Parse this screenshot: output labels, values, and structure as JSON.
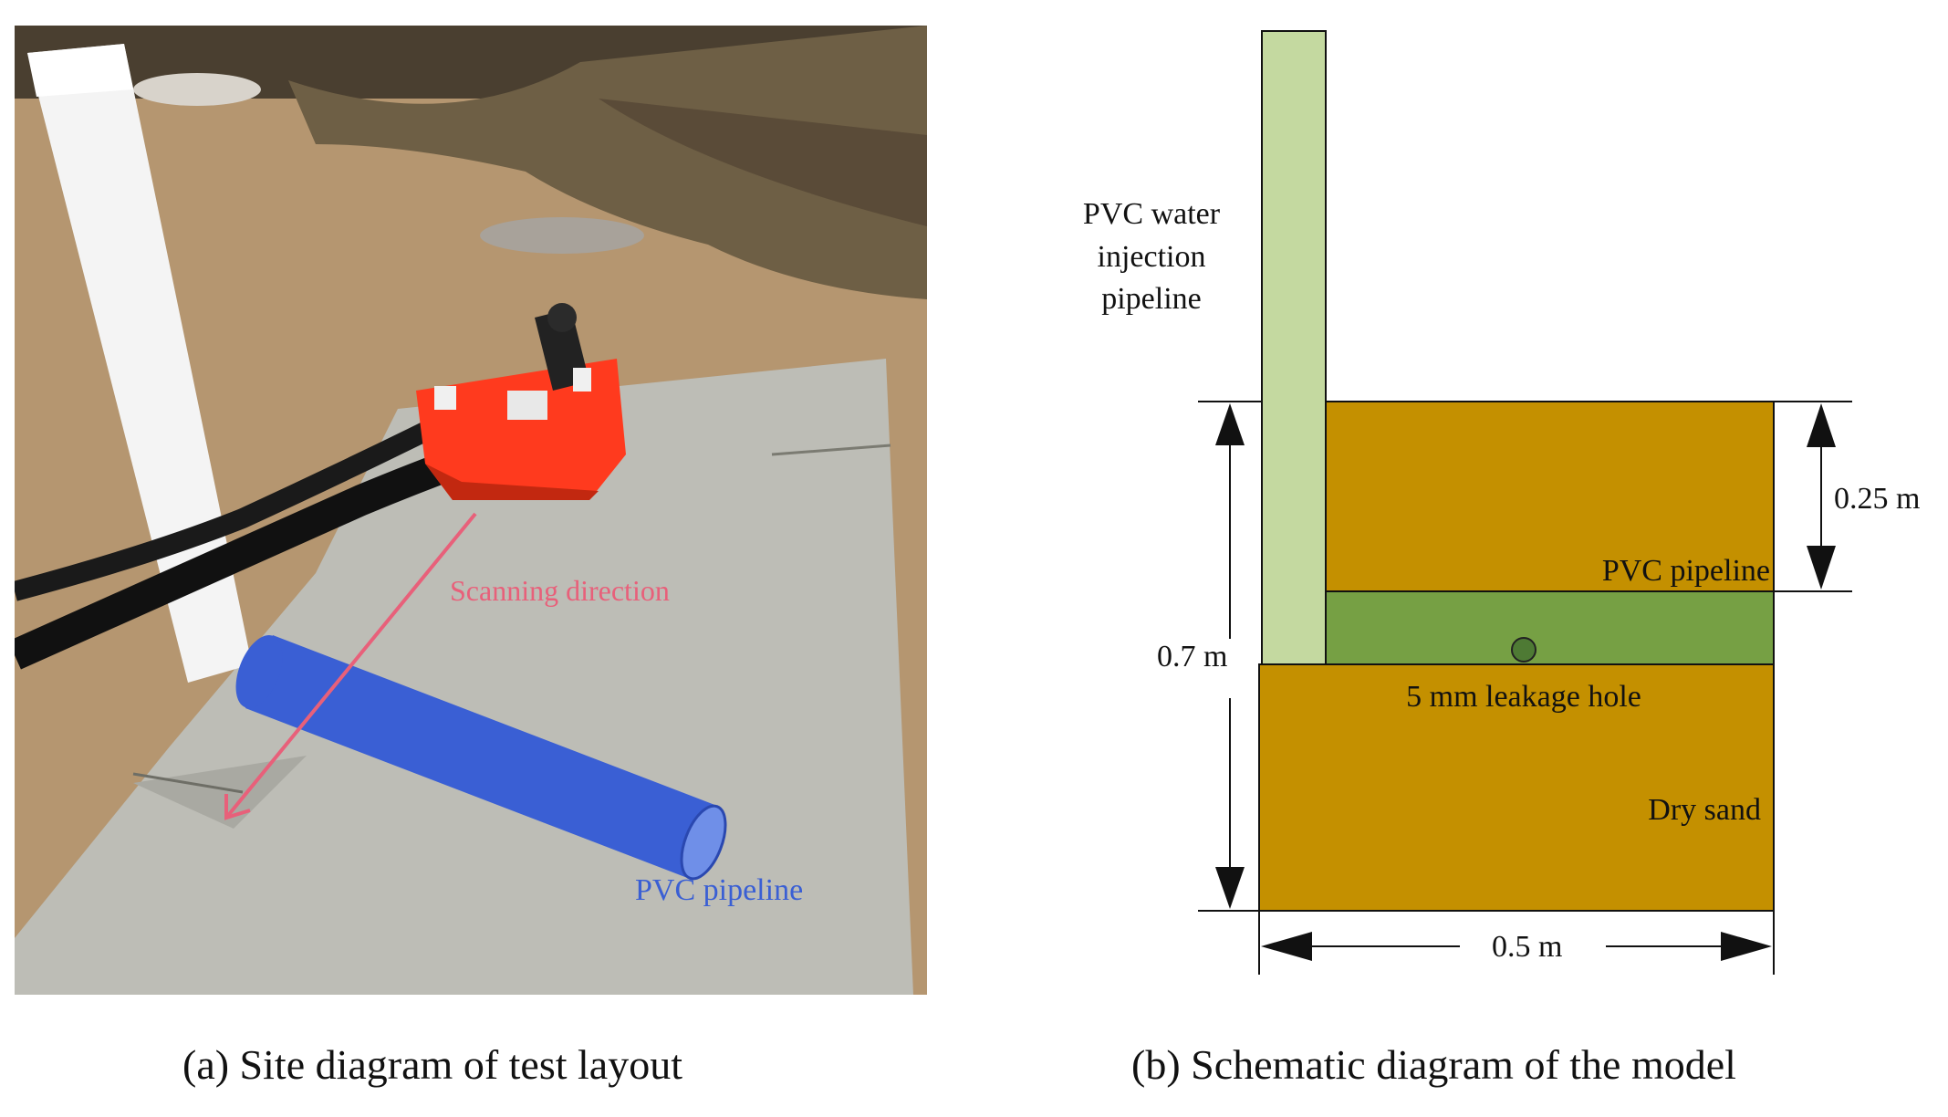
{
  "panel_a": {
    "scan_label": "Scanning direction",
    "pipe_label": "PVC pipeline",
    "caption": "(a) Site diagram of test layout",
    "colors": {
      "scan_arrow": "#e8607a",
      "pipe": "#3a5fd4",
      "gpr_unit": "#ff3a1e",
      "slab": "#bcbcb6",
      "sand": "#b89570"
    }
  },
  "panel_b": {
    "labels": {
      "injection_line1": "PVC water",
      "injection_line2": "injection",
      "injection_line3": "pipeline",
      "depth_top": "0.25 m",
      "pipeline": "PVC pipeline",
      "total_depth": "0.7 m",
      "leak_hole": "5 mm leakage hole",
      "dry_sand": "Dry sand",
      "width": "0.5 m"
    },
    "caption": "(b) Schematic diagram of the model",
    "colors": {
      "sand": "#c49000",
      "pipeline_layer": "#76a044",
      "injection_pipe": "#c4d9a0",
      "leak_hole": "#4e7a34"
    }
  }
}
